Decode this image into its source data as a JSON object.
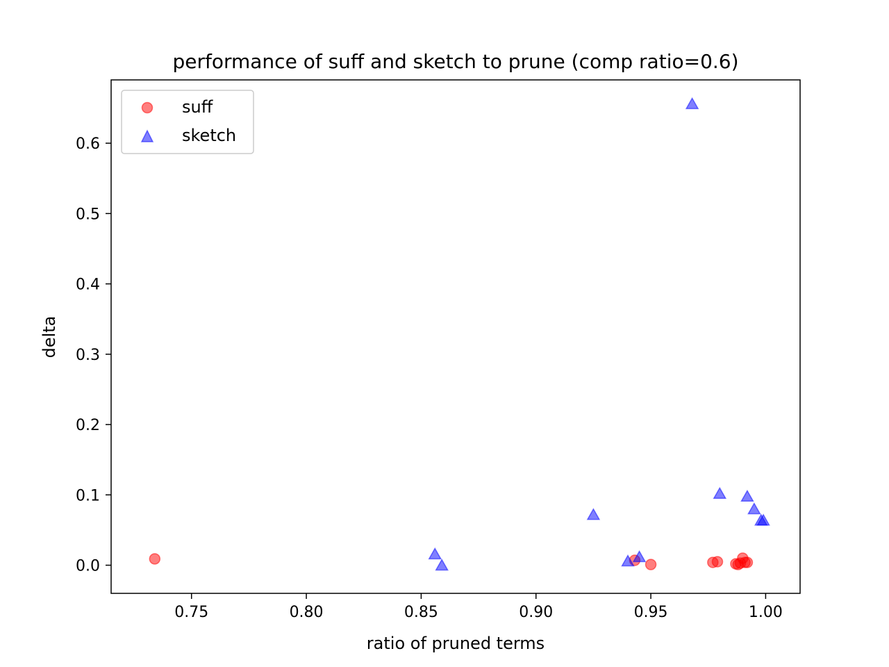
{
  "chart_data": {
    "type": "scatter",
    "title": "performance of suff and sketch to prune (comp ratio=0.6)",
    "xlabel": "ratio of pruned terms",
    "ylabel": "delta",
    "xlim": [
      0.715,
      1.015
    ],
    "ylim": [
      -0.04,
      0.69
    ],
    "xticks": [
      0.75,
      0.8,
      0.85,
      0.9,
      0.95,
      1.0
    ],
    "xtick_labels": [
      "0.75",
      "0.80",
      "0.85",
      "0.90",
      "0.95",
      "1.00"
    ],
    "yticks": [
      0.0,
      0.1,
      0.2,
      0.3,
      0.4,
      0.5,
      0.6
    ],
    "ytick_labels": [
      "0.0",
      "0.1",
      "0.2",
      "0.3",
      "0.4",
      "0.5",
      "0.6"
    ],
    "legend_position": "top-left",
    "grid": false,
    "series": [
      {
        "name": "suff",
        "marker": "circle",
        "color": "#ff0000",
        "alpha": 0.5,
        "points": [
          {
            "x": 0.734,
            "y": 0.009
          },
          {
            "x": 0.943,
            "y": 0.007
          },
          {
            "x": 0.95,
            "y": 0.001
          },
          {
            "x": 0.977,
            "y": 0.004
          },
          {
            "x": 0.979,
            "y": 0.005
          },
          {
            "x": 0.987,
            "y": 0.002
          },
          {
            "x": 0.988,
            "y": 0.001
          },
          {
            "x": 0.989,
            "y": 0.003
          },
          {
            "x": 0.99,
            "y": 0.01
          },
          {
            "x": 0.991,
            "y": 0.004
          },
          {
            "x": 0.992,
            "y": 0.004
          }
        ]
      },
      {
        "name": "sketch",
        "marker": "triangle",
        "color": "#0000ff",
        "alpha": 0.5,
        "points": [
          {
            "x": 0.856,
            "y": 0.015
          },
          {
            "x": 0.859,
            "y": -0.001
          },
          {
            "x": 0.925,
            "y": 0.071
          },
          {
            "x": 0.94,
            "y": 0.005
          },
          {
            "x": 0.945,
            "y": 0.011
          },
          {
            "x": 0.968,
            "y": 0.655
          },
          {
            "x": 0.98,
            "y": 0.101
          },
          {
            "x": 0.992,
            "y": 0.097
          },
          {
            "x": 0.995,
            "y": 0.079
          },
          {
            "x": 0.998,
            "y": 0.063
          },
          {
            "x": 0.999,
            "y": 0.063
          }
        ]
      }
    ]
  }
}
